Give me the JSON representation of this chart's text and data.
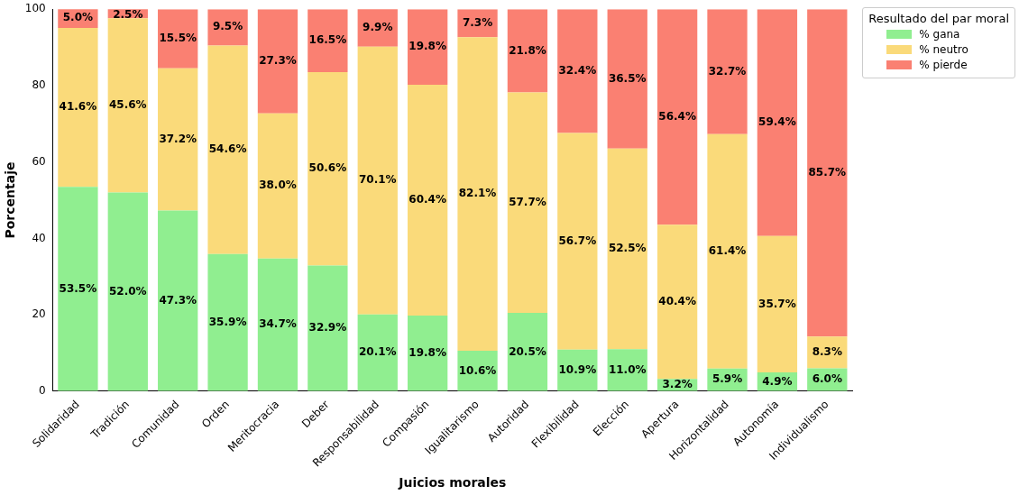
{
  "chart_data": {
    "type": "bar",
    "stacked": true,
    "xlabel": "Juicios morales",
    "ylabel": "Porcentaje",
    "legend_title": "Resultado del par moral",
    "legend": "top right",
    "grid": false,
    "categories": [
      "Solidaridad",
      "Tradición",
      "Comunidad",
      "Orden",
      "Meritocracia",
      "Deber",
      "Responsabilidad",
      "Compasión",
      "Igualitarismo",
      "Autoridad",
      "Flexibilidad",
      "Elección",
      "Apertura",
      "Horizontalidad",
      "Autonomía",
      "Individualismo"
    ],
    "ylim": [
      0,
      100
    ],
    "yticks": [
      0,
      20,
      40,
      60,
      80,
      100
    ],
    "series": [
      {
        "name": "% gana",
        "color": "#90ee90",
        "values": [
          53.5,
          52.0,
          47.3,
          35.9,
          34.7,
          32.9,
          20.1,
          19.8,
          10.6,
          20.5,
          10.9,
          11.0,
          3.2,
          5.9,
          4.9,
          6.0
        ],
        "value_labels": [
          "53.5%",
          "52.0%",
          "47.3%",
          "35.9%",
          "34.7%",
          "32.9%",
          "20.1%",
          "19.8%",
          "10.6%",
          "20.5%",
          "10.9%",
          "11.0%",
          "3.2%",
          "5.9%",
          "4.9%",
          "6.0%"
        ]
      },
      {
        "name": "% neutro",
        "color": "#fada7a",
        "values": [
          41.6,
          45.6,
          37.2,
          54.6,
          38.0,
          50.6,
          70.1,
          60.4,
          82.1,
          57.7,
          56.7,
          52.5,
          40.4,
          61.4,
          35.7,
          8.3
        ],
        "value_labels": [
          "41.6%",
          "45.6%",
          "37.2%",
          "54.6%",
          "38.0%",
          "50.6%",
          "70.1%",
          "60.4%",
          "82.1%",
          "57.7%",
          "56.7%",
          "52.5%",
          "40.4%",
          "61.4%",
          "35.7%",
          "8.3%"
        ]
      },
      {
        "name": "% pierde",
        "color": "#fa8072",
        "values": [
          5.0,
          2.5,
          15.5,
          9.5,
          27.3,
          16.5,
          9.9,
          19.8,
          7.3,
          21.8,
          32.4,
          36.5,
          56.4,
          32.7,
          59.4,
          85.7
        ],
        "value_labels": [
          "5.0%",
          "2.5%",
          "15.5%",
          "9.5%",
          "27.3%",
          "16.5%",
          "9.9%",
          "19.8%",
          "7.3%",
          "21.8%",
          "32.4%",
          "36.5%",
          "56.4%",
          "32.7%",
          "59.4%",
          "85.7%"
        ]
      }
    ]
  }
}
